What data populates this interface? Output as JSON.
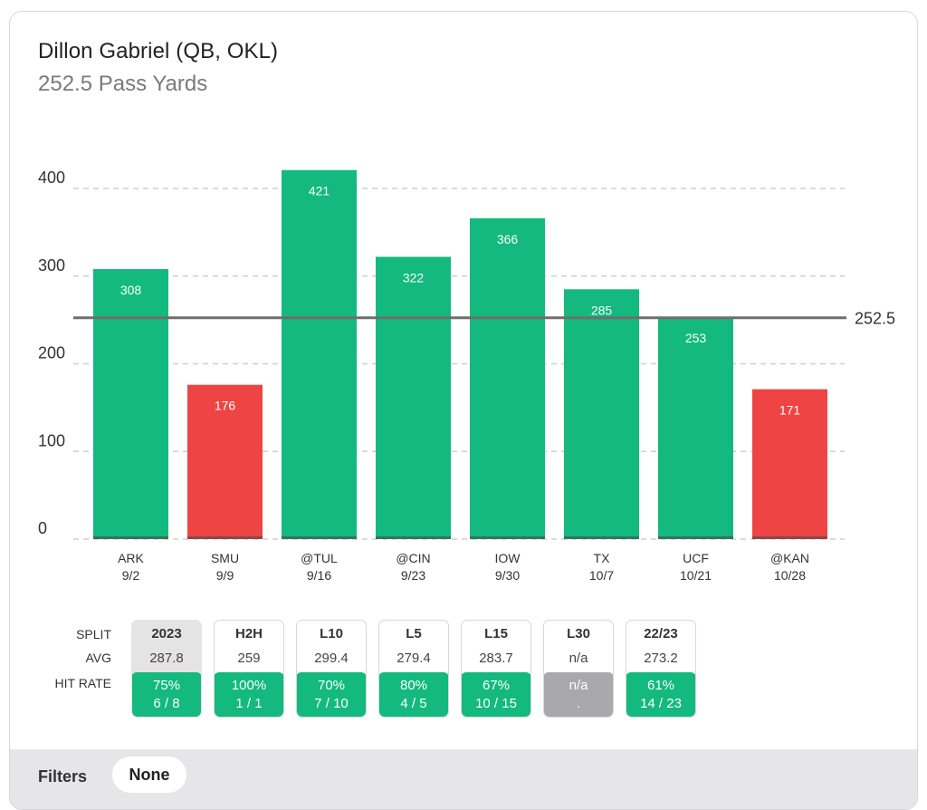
{
  "header": {
    "title": "Dillon Gabriel (QB, OKL)",
    "subtitle": "252.5 Pass Yards"
  },
  "chart_data": {
    "type": "bar",
    "title": "Dillon Gabriel (QB, OKL)",
    "subtitle": "252.5 Pass Yards",
    "categories": [
      "ARK",
      "SMU",
      "@TUL",
      "@CIN",
      "IOW",
      "TX",
      "UCF",
      "@KAN"
    ],
    "dates": [
      "9/2",
      "9/9",
      "9/16",
      "9/23",
      "9/30",
      "10/7",
      "10/21",
      "10/28"
    ],
    "values": [
      308,
      176,
      421,
      322,
      366,
      285,
      253,
      171
    ],
    "value_labels": [
      "308",
      "176",
      "421",
      "322",
      "366",
      "285",
      "253",
      "171"
    ],
    "line": {
      "value": 252.5,
      "label": "252.5"
    },
    "ylim": [
      0,
      400
    ],
    "yticks": [
      0,
      100,
      200,
      300,
      400
    ],
    "ytick_labels": [
      "0",
      "100",
      "200",
      "300",
      "400"
    ],
    "grid": true,
    "colors": {
      "over": "#13b97e",
      "under": "#ef4444",
      "line": "#6e6e6e",
      "grid": "#cfcfcf"
    }
  },
  "splits": {
    "row_labels": {
      "split": "SPLIT",
      "avg": "AVG",
      "hit_rate": "HIT RATE"
    },
    "columns": [
      {
        "name": "2023",
        "avg": "287.8",
        "pct": "75%",
        "frac": "6 / 8",
        "status": "green",
        "selected": true
      },
      {
        "name": "H2H",
        "avg": "259",
        "pct": "100%",
        "frac": "1 / 1",
        "status": "green",
        "selected": false
      },
      {
        "name": "L10",
        "avg": "299.4",
        "pct": "70%",
        "frac": "7 / 10",
        "status": "green",
        "selected": false
      },
      {
        "name": "L5",
        "avg": "279.4",
        "pct": "80%",
        "frac": "4 / 5",
        "status": "green",
        "selected": false
      },
      {
        "name": "L15",
        "avg": "283.7",
        "pct": "67%",
        "frac": "10 / 15",
        "status": "green",
        "selected": false
      },
      {
        "name": "L30",
        "avg": "n/a",
        "pct": "n/a",
        "frac": ".",
        "status": "gray",
        "selected": false
      },
      {
        "name": "22/23",
        "avg": "273.2",
        "pct": "61%",
        "frac": "14 / 23",
        "status": "green",
        "selected": false
      }
    ]
  },
  "filters": {
    "label": "Filters",
    "value": "None"
  }
}
